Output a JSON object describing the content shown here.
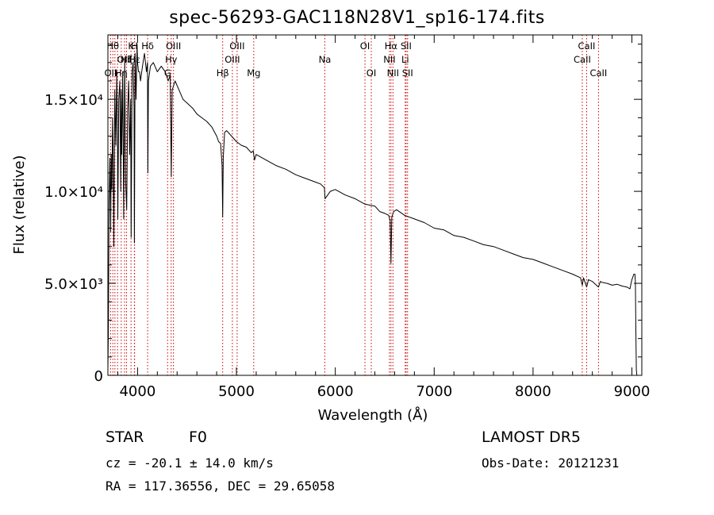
{
  "chart_data": {
    "type": "line",
    "title": "spec-56293-GAC118N28V1_sp16-174.fits",
    "xlabel": "Wavelength (Å)",
    "ylabel": "Flux (relative)",
    "xlim": [
      3700,
      9100
    ],
    "ylim": [
      0,
      18500
    ],
    "x_ticks": [
      {
        "value": 4000,
        "label": "4000"
      },
      {
        "value": 5000,
        "label": "5000"
      },
      {
        "value": 6000,
        "label": "6000"
      },
      {
        "value": 7000,
        "label": "7000"
      },
      {
        "value": 8000,
        "label": "8000"
      },
      {
        "value": 9000,
        "label": "9000"
      }
    ],
    "y_ticks": [
      {
        "value": 0,
        "label": "0"
      },
      {
        "value": 5000,
        "label": "5.0×10³"
      },
      {
        "value": 10000,
        "label": "1.0×10⁴"
      },
      {
        "value": 15000,
        "label": "1.5×10⁴"
      }
    ],
    "grid": false,
    "series": [
      {
        "color": "#000000",
        "x": [
          3700,
          3705,
          3712,
          3720,
          3728,
          3734,
          3740,
          3747,
          3752,
          3760,
          3770,
          3780,
          3790,
          3797,
          3800,
          3810,
          3820,
          3830,
          3835,
          3840,
          3850,
          3860,
          3870,
          3880,
          3890,
          3900,
          3910,
          3920,
          3930,
          3935,
          3945,
          3955,
          3965,
          3968,
          3975,
          3985,
          3995,
          4000,
          4010,
          4020,
          4030,
          4050,
          4070,
          4090,
          4100,
          4104,
          4110,
          4130,
          4160,
          4200,
          4240,
          4280,
          4310,
          4330,
          4341,
          4350,
          4380,
          4420,
          4460,
          4500,
          4560,
          4600,
          4650,
          4700,
          4750,
          4800,
          4820,
          4840,
          4855,
          4861,
          4867,
          4880,
          4900,
          4950,
          5000,
          5050,
          5100,
          5150,
          5170,
          5183,
          5200,
          5300,
          5400,
          5500,
          5600,
          5700,
          5800,
          5850,
          5890,
          5896,
          5950,
          6000,
          6100,
          6200,
          6300,
          6400,
          6450,
          6500,
          6540,
          6555,
          6563,
          6572,
          6590,
          6620,
          6700,
          6800,
          6900,
          7000,
          7100,
          7200,
          7300,
          7400,
          7500,
          7600,
          7700,
          7800,
          7900,
          8000,
          8100,
          8200,
          8300,
          8400,
          8480,
          8498,
          8510,
          8542,
          8560,
          8600,
          8662,
          8680,
          8700,
          8750,
          8800,
          8850,
          8900,
          8950,
          8980,
          9000,
          9020,
          9030,
          9035,
          9040,
          9045,
          9050
        ],
        "y": [
          300,
          2500,
          9400,
          11800,
          7800,
          12000,
          10100,
          14000,
          12500,
          7000,
          15500,
          12500,
          16500,
          13000,
          8500,
          15000,
          16000,
          10000,
          15500,
          12000,
          16500,
          8500,
          17200,
          10500,
          9000,
          14500,
          16000,
          12000,
          15000,
          7500,
          16500,
          17000,
          14500,
          7200,
          17500,
          15000,
          18000,
          17000,
          16500,
          16500,
          16000,
          16800,
          17500,
          16500,
          17000,
          11000,
          16000,
          16800,
          17000,
          16500,
          16800,
          16500,
          16000,
          16300,
          10800,
          15500,
          16000,
          15500,
          15000,
          14800,
          14500,
          14200,
          14000,
          13800,
          13500,
          13000,
          12700,
          12600,
          11400,
          8600,
          11800,
          13200,
          13300,
          13000,
          12700,
          12500,
          12400,
          12100,
          12200,
          11700,
          12000,
          11700,
          11400,
          11200,
          10900,
          10700,
          10500,
          10400,
          10200,
          9600,
          10000,
          10100,
          9800,
          9600,
          9300,
          9200,
          8900,
          8800,
          8700,
          8400,
          6100,
          8600,
          8900,
          9000,
          8700,
          8500,
          8300,
          8000,
          7900,
          7600,
          7500,
          7300,
          7100,
          7000,
          6800,
          6600,
          6400,
          6300,
          6100,
          5900,
          5700,
          5500,
          5300,
          4900,
          5300,
          4800,
          5200,
          5100,
          4800,
          5100,
          5050,
          5000,
          4900,
          4950,
          4850,
          4800,
          4700,
          5200,
          5500,
          5500,
          5100,
          2500,
          300,
          0
        ]
      }
    ],
    "line_markers": [
      {
        "x": 3727,
        "label": "OII",
        "row": 3
      },
      {
        "x": 3750,
        "label": "Hθ",
        "row": 1
      },
      {
        "x": 3771,
        "label": "",
        "row": 0
      },
      {
        "x": 3798,
        "label": "",
        "row": 0
      },
      {
        "x": 3835,
        "label": "Hη",
        "row": 3
      },
      {
        "x": 3869,
        "label": "OIII",
        "row": 2
      },
      {
        "x": 3889,
        "label": "Hζ",
        "row": 2
      },
      {
        "x": 3934,
        "label": "K",
        "row": 1
      },
      {
        "x": 3968,
        "label": "H",
        "row": 1
      },
      {
        "x": 3970,
        "label": "Hε",
        "row": 2
      },
      {
        "x": 4102,
        "label": "Hδ",
        "row": 1
      },
      {
        "x": 4304,
        "label": "G",
        "row": 3
      },
      {
        "x": 4340,
        "label": "Hγ",
        "row": 2
      },
      {
        "x": 4363,
        "label": "OIII",
        "row": 1
      },
      {
        "x": 4861,
        "label": "Hβ",
        "row": 3
      },
      {
        "x": 4959,
        "label": "OIII",
        "row": 2
      },
      {
        "x": 5007,
        "label": "OIII",
        "row": 1
      },
      {
        "x": 5175,
        "label": "Mg",
        "row": 3
      },
      {
        "x": 5894,
        "label": "Na",
        "row": 2
      },
      {
        "x": 6300,
        "label": "OI",
        "row": 1
      },
      {
        "x": 6364,
        "label": "OI",
        "row": 3
      },
      {
        "x": 6548,
        "label": "NII",
        "row": 2
      },
      {
        "x": 6563,
        "label": "Hα",
        "row": 1
      },
      {
        "x": 6583,
        "label": "NII",
        "row": 3
      },
      {
        "x": 6707,
        "label": "Li",
        "row": 2
      },
      {
        "x": 6716,
        "label": "SII",
        "row": 1
      },
      {
        "x": 6731,
        "label": "SII",
        "row": 3
      },
      {
        "x": 8498,
        "label": "CaII",
        "row": 2
      },
      {
        "x": 8542,
        "label": "CaII",
        "row": 1
      },
      {
        "x": 8662,
        "label": "CaII",
        "row": 3
      }
    ]
  },
  "info": {
    "class": "STAR",
    "subclass": "F0",
    "survey": "LAMOST DR5",
    "redshift": "cz = -20.1 ± 14.0 km/s",
    "obs_date": "Obs-Date: 20121231",
    "coords": "RA = 117.36556, DEC =  29.65058"
  },
  "colors": {
    "background": "#ffffff",
    "axes": "#000000",
    "spectrum": "#000000",
    "line_markers": "#cc0000"
  }
}
